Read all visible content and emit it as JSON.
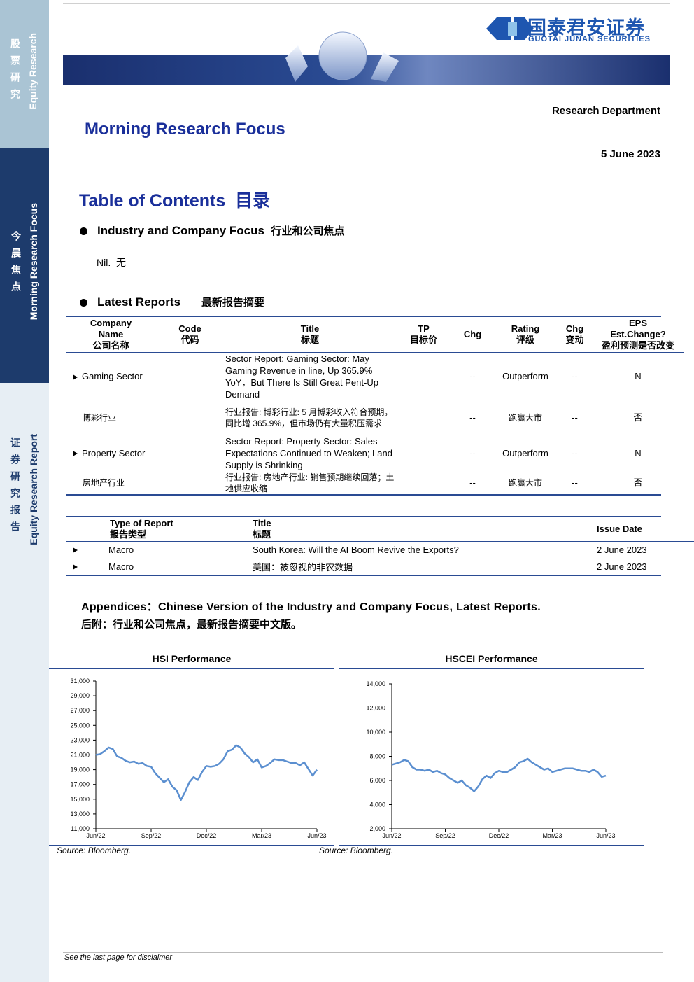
{
  "sidebar": {
    "top_cn": "股票研究",
    "top_en": "Equity Research",
    "middle_cn": "今晨焦点",
    "middle_en": "Morning Research Focus",
    "bottom_cn": "证券研究报告",
    "bottom_en": "Equity Research Report"
  },
  "header": {
    "logo_cn": "国泰君安证券",
    "logo_en": "GUOTAI JUNAN SECURITIES",
    "department": "Research Department",
    "title": "Morning Research Focus",
    "date": "5 June 2023"
  },
  "toc": {
    "title": "Table of Contents",
    "title_cn": "目录"
  },
  "focus": {
    "heading": "Industry and Company Focus",
    "heading_cn": "行业和公司焦点",
    "body": "Nil.",
    "body_cn": "无"
  },
  "latest": {
    "heading": "Latest Reports",
    "heading_cn": "最新报告摘要"
  },
  "reports_table": {
    "headers": [
      [
        "Company",
        "Name",
        "公司名称"
      ],
      [
        "Code",
        "代码"
      ],
      [
        "Title",
        "标题"
      ],
      [
        "TP",
        "目标价"
      ],
      [
        "Chg"
      ],
      [
        "Rating",
        "评级"
      ],
      [
        "Chg",
        "变动"
      ],
      [
        "EPS",
        "Est.Change?",
        "盈利预测是否改变"
      ]
    ],
    "rows": [
      [
        "Gaming Sector",
        null,
        "Sector Report: Gaming Sector: May Gaming Revenue in line, Up 365.9% YoY，But There Is Still Great Pent-Up Demand",
        null,
        "--",
        "Outperform",
        "--",
        "N"
      ],
      [
        "博彩行业",
        null,
        "行业报告: 博彩行业: 5 月博彩收入符合预期，同比增 365.9%，但市场仍有大量积压需求",
        null,
        "--",
        "跑赢大市",
        "--",
        "否"
      ],
      [
        "Property Sector",
        null,
        "Sector Report: Property Sector: Sales Expectations Continued to Weaken; Land Supply is Shrinking",
        null,
        "--",
        "Outperform",
        "--",
        "N"
      ],
      [
        "房地产行业",
        null,
        "行业报告: 房地产行业: 销售预期继续回落；土地供应收缩",
        null,
        "--",
        "跑赢大市",
        "--",
        "否"
      ]
    ]
  },
  "issue_table": {
    "headers": [
      [
        "Type of Report",
        "报告类型"
      ],
      [
        "Title",
        "标题"
      ],
      [
        "Issue Date"
      ]
    ],
    "rows": [
      [
        "Macro",
        "South Korea: Will the AI Boom Revive the Exports?",
        "2 June 2023"
      ],
      [
        "Macro",
        "美国：被忽视的非农数据",
        "2 June 2023"
      ]
    ]
  },
  "appendices": {
    "en": "Appendices：Chinese Version of the Industry and Company Focus, Latest Reports.",
    "cn": "后附：行业和公司焦点，最新报告摘要中文版。"
  },
  "chart_data": [
    {
      "type": "line",
      "title": "HSI Performance",
      "source": "Source: Bloomberg.",
      "color": "#5b8fd0",
      "categories": [
        "Jun/22",
        null,
        null,
        null,
        null,
        null,
        null,
        null,
        null,
        null,
        null,
        null,
        null,
        "Sep/22",
        null,
        null,
        null,
        null,
        null,
        null,
        null,
        null,
        null,
        null,
        null,
        null,
        "Dec/22",
        null,
        null,
        null,
        null,
        null,
        null,
        null,
        null,
        null,
        null,
        null,
        null,
        "Mar/23",
        null,
        null,
        null,
        null,
        null,
        null,
        null,
        null,
        null,
        null,
        null,
        null,
        "Jun/23"
      ],
      "values": [
        21000,
        21100,
        21500,
        22000,
        21800,
        20800,
        20600,
        20200,
        20000,
        20100,
        19800,
        19900,
        19500,
        19400,
        18500,
        17900,
        17300,
        17700,
        16700,
        16200,
        14900,
        16000,
        17300,
        18000,
        17600,
        18700,
        19500,
        19400,
        19500,
        19800,
        20400,
        21500,
        21700,
        22300,
        22000,
        21200,
        20700,
        20000,
        20400,
        19300,
        19500,
        19900,
        20400,
        20300,
        20300,
        20100,
        19900,
        19900,
        19600,
        20000,
        19100,
        18200,
        19000
      ],
      "ylim": [
        11000,
        31000
      ],
      "yticks": [
        {
          "value": 11000,
          "label": "11,000"
        },
        {
          "value": 13000,
          "label": "13,000"
        },
        {
          "value": 15000,
          "label": "15,000"
        },
        {
          "value": 17000,
          "label": "17,000"
        },
        {
          "value": 19000,
          "label": "19,000"
        },
        {
          "value": 21000,
          "label": "21,000"
        },
        {
          "value": 23000,
          "label": "23,000"
        },
        {
          "value": 25000,
          "label": "25,000"
        },
        {
          "value": 27000,
          "label": "27,000"
        },
        {
          "value": 29000,
          "label": "29,000"
        },
        {
          "value": 31000,
          "label": "31,000"
        }
      ]
    },
    {
      "type": "line",
      "title": "HSCEI Performance",
      "source": "Source: Bloomberg.",
      "color": "#5b8fd0",
      "categories": [
        "Jun/22",
        null,
        null,
        null,
        null,
        null,
        null,
        null,
        null,
        null,
        null,
        null,
        null,
        "Sep/22",
        null,
        null,
        null,
        null,
        null,
        null,
        null,
        null,
        null,
        null,
        null,
        null,
        "Dec/22",
        null,
        null,
        null,
        null,
        null,
        null,
        null,
        null,
        null,
        null,
        null,
        null,
        "Mar/23",
        null,
        null,
        null,
        null,
        null,
        null,
        null,
        null,
        null,
        null,
        null,
        null,
        "Jun/23"
      ],
      "values": [
        7300,
        7400,
        7500,
        7700,
        7600,
        7100,
        6900,
        6900,
        6800,
        6900,
        6700,
        6800,
        6600,
        6500,
        6200,
        6000,
        5800,
        6000,
        5600,
        5400,
        5100,
        5500,
        6100,
        6400,
        6200,
        6600,
        6800,
        6700,
        6700,
        6900,
        7100,
        7500,
        7600,
        7800,
        7500,
        7300,
        7100,
        6900,
        7000,
        6700,
        6800,
        6900,
        7000,
        7000,
        7000,
        6900,
        6800,
        6800,
        6700,
        6900,
        6700,
        6300,
        6400
      ],
      "ylim": [
        2000,
        14000
      ],
      "yticks": [
        {
          "value": 2000,
          "label": "2,000"
        },
        {
          "value": 4000,
          "label": "4,000"
        },
        {
          "value": 6000,
          "label": "6,000"
        },
        {
          "value": 8000,
          "label": "8,000"
        },
        {
          "value": 10000,
          "label": "10,000"
        },
        {
          "value": 12000,
          "label": "12,000"
        },
        {
          "value": 14000,
          "label": "14,000"
        }
      ]
    }
  ],
  "footer": {
    "disclaimer": "See the last page for disclaimer"
  }
}
